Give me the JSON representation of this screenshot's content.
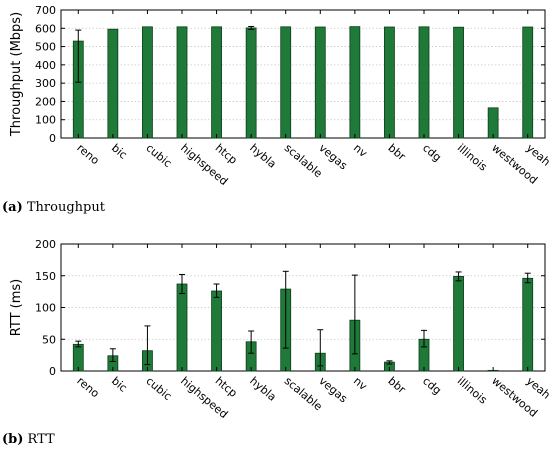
{
  "colors": {
    "bar_fill": "#1f7a3a",
    "bar_stroke": "#0d3d1a",
    "grid": "#c8c8c8",
    "axis": "#000000",
    "error_bar": "#000000"
  },
  "captions": [
    {
      "letter": "(a)",
      "text": " Throughput"
    },
    {
      "letter": "(b)",
      "text": " RTT"
    }
  ],
  "chart_data": [
    {
      "type": "bar",
      "title": "",
      "xlabel": "",
      "ylabel": "Throughput (Mbps)",
      "ylim": [
        0,
        700
      ],
      "yticks": [
        0,
        100,
        200,
        300,
        400,
        500,
        600,
        700
      ],
      "grid": true,
      "categories": [
        "reno",
        "bic",
        "cubic",
        "highspeed",
        "htcp",
        "hybla",
        "scalable",
        "vegas",
        "nv",
        "bbr",
        "cdg",
        "illinois",
        "westwood",
        "yeah"
      ],
      "values": [
        530,
        595,
        608,
        608,
        608,
        602,
        608,
        607,
        609,
        607,
        608,
        606,
        165,
        607
      ],
      "error_low": [
        305,
        595,
        608,
        608,
        608,
        594,
        608,
        607,
        609,
        607,
        608,
        606,
        165,
        607
      ],
      "error_high": [
        590,
        595,
        608,
        608,
        608,
        610,
        608,
        607,
        609,
        607,
        608,
        606,
        165,
        607
      ]
    },
    {
      "type": "bar",
      "title": "",
      "xlabel": "",
      "ylabel": "RTT (ms)",
      "ylim": [
        0,
        200
      ],
      "yticks": [
        0,
        50,
        100,
        150,
        200
      ],
      "grid": true,
      "categories": [
        "reno",
        "bic",
        "cubic",
        "highspeed",
        "htcp",
        "hybla",
        "scalable",
        "vegas",
        "nv",
        "bbr",
        "cdg",
        "illinois",
        "westwood",
        "yeah"
      ],
      "values": [
        42,
        24,
        32,
        137,
        126,
        46,
        129,
        28,
        80,
        14,
        50,
        149,
        1,
        146
      ],
      "error_low": [
        38,
        15,
        10,
        122,
        116,
        28,
        36,
        8,
        27,
        11,
        38,
        142,
        1,
        139
      ],
      "error_high": [
        47,
        35,
        71,
        152,
        137,
        63,
        157,
        65,
        151,
        16,
        64,
        156,
        1,
        154
      ]
    }
  ]
}
